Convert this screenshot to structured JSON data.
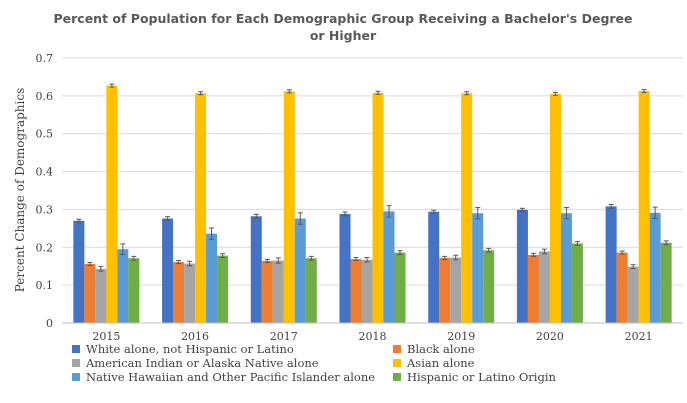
{
  "chart_data": {
    "type": "bar",
    "title_lines": [
      "Percent of Population for Each Demographic Group Receiving a Bachelor's Degree",
      "or Higher"
    ],
    "xlabel": "",
    "ylabel": "Percent Change of Demographics",
    "ylim": [
      0,
      0.7
    ],
    "yticks": [
      "0",
      "0.1",
      "0.2",
      "0.3",
      "0.4",
      "0.5",
      "0.6",
      "0.7"
    ],
    "grid": true,
    "legend_position": "bottom",
    "categories": [
      "2015",
      "2016",
      "2017",
      "2018",
      "2019",
      "2020",
      "2021"
    ],
    "series": [
      {
        "name": "White alone, not Hispanic or Latino",
        "color": "#4472C4",
        "values": [
          0.27,
          0.276,
          0.282,
          0.288,
          0.294,
          0.299,
          0.308
        ],
        "errors": [
          0.004,
          0.005,
          0.005,
          0.005,
          0.004,
          0.004,
          0.005
        ]
      },
      {
        "name": "Black alone",
        "color": "#ED7D31",
        "values": [
          0.156,
          0.161,
          0.164,
          0.169,
          0.172,
          0.18,
          0.186
        ],
        "errors": [
          0.004,
          0.004,
          0.004,
          0.004,
          0.004,
          0.004,
          0.004
        ]
      },
      {
        "name": "American Indian or Alaska Native alone",
        "color": "#A5A5A5",
        "values": [
          0.143,
          0.157,
          0.165,
          0.167,
          0.173,
          0.189,
          0.149
        ],
        "errors": [
          0.006,
          0.006,
          0.007,
          0.006,
          0.006,
          0.006,
          0.005
        ]
      },
      {
        "name": "Asian alone",
        "color": "#FFC000",
        "values": [
          0.627,
          0.607,
          0.612,
          0.608,
          0.607,
          0.605,
          0.613
        ],
        "errors": [
          0.004,
          0.004,
          0.004,
          0.004,
          0.004,
          0.004,
          0.004
        ]
      },
      {
        "name": "Native Hawaiian and Other Pacific Islander alone",
        "color": "#5B9BD5",
        "values": [
          0.195,
          0.236,
          0.276,
          0.295,
          0.29,
          0.29,
          0.291
        ],
        "errors": [
          0.014,
          0.015,
          0.015,
          0.015,
          0.015,
          0.015,
          0.015
        ]
      },
      {
        "name": "Hispanic or Latino Origin",
        "color": "#70AD47",
        "values": [
          0.171,
          0.178,
          0.171,
          0.186,
          0.192,
          0.21,
          0.212
        ],
        "errors": [
          0.005,
          0.005,
          0.005,
          0.005,
          0.005,
          0.005,
          0.005
        ]
      }
    ]
  }
}
